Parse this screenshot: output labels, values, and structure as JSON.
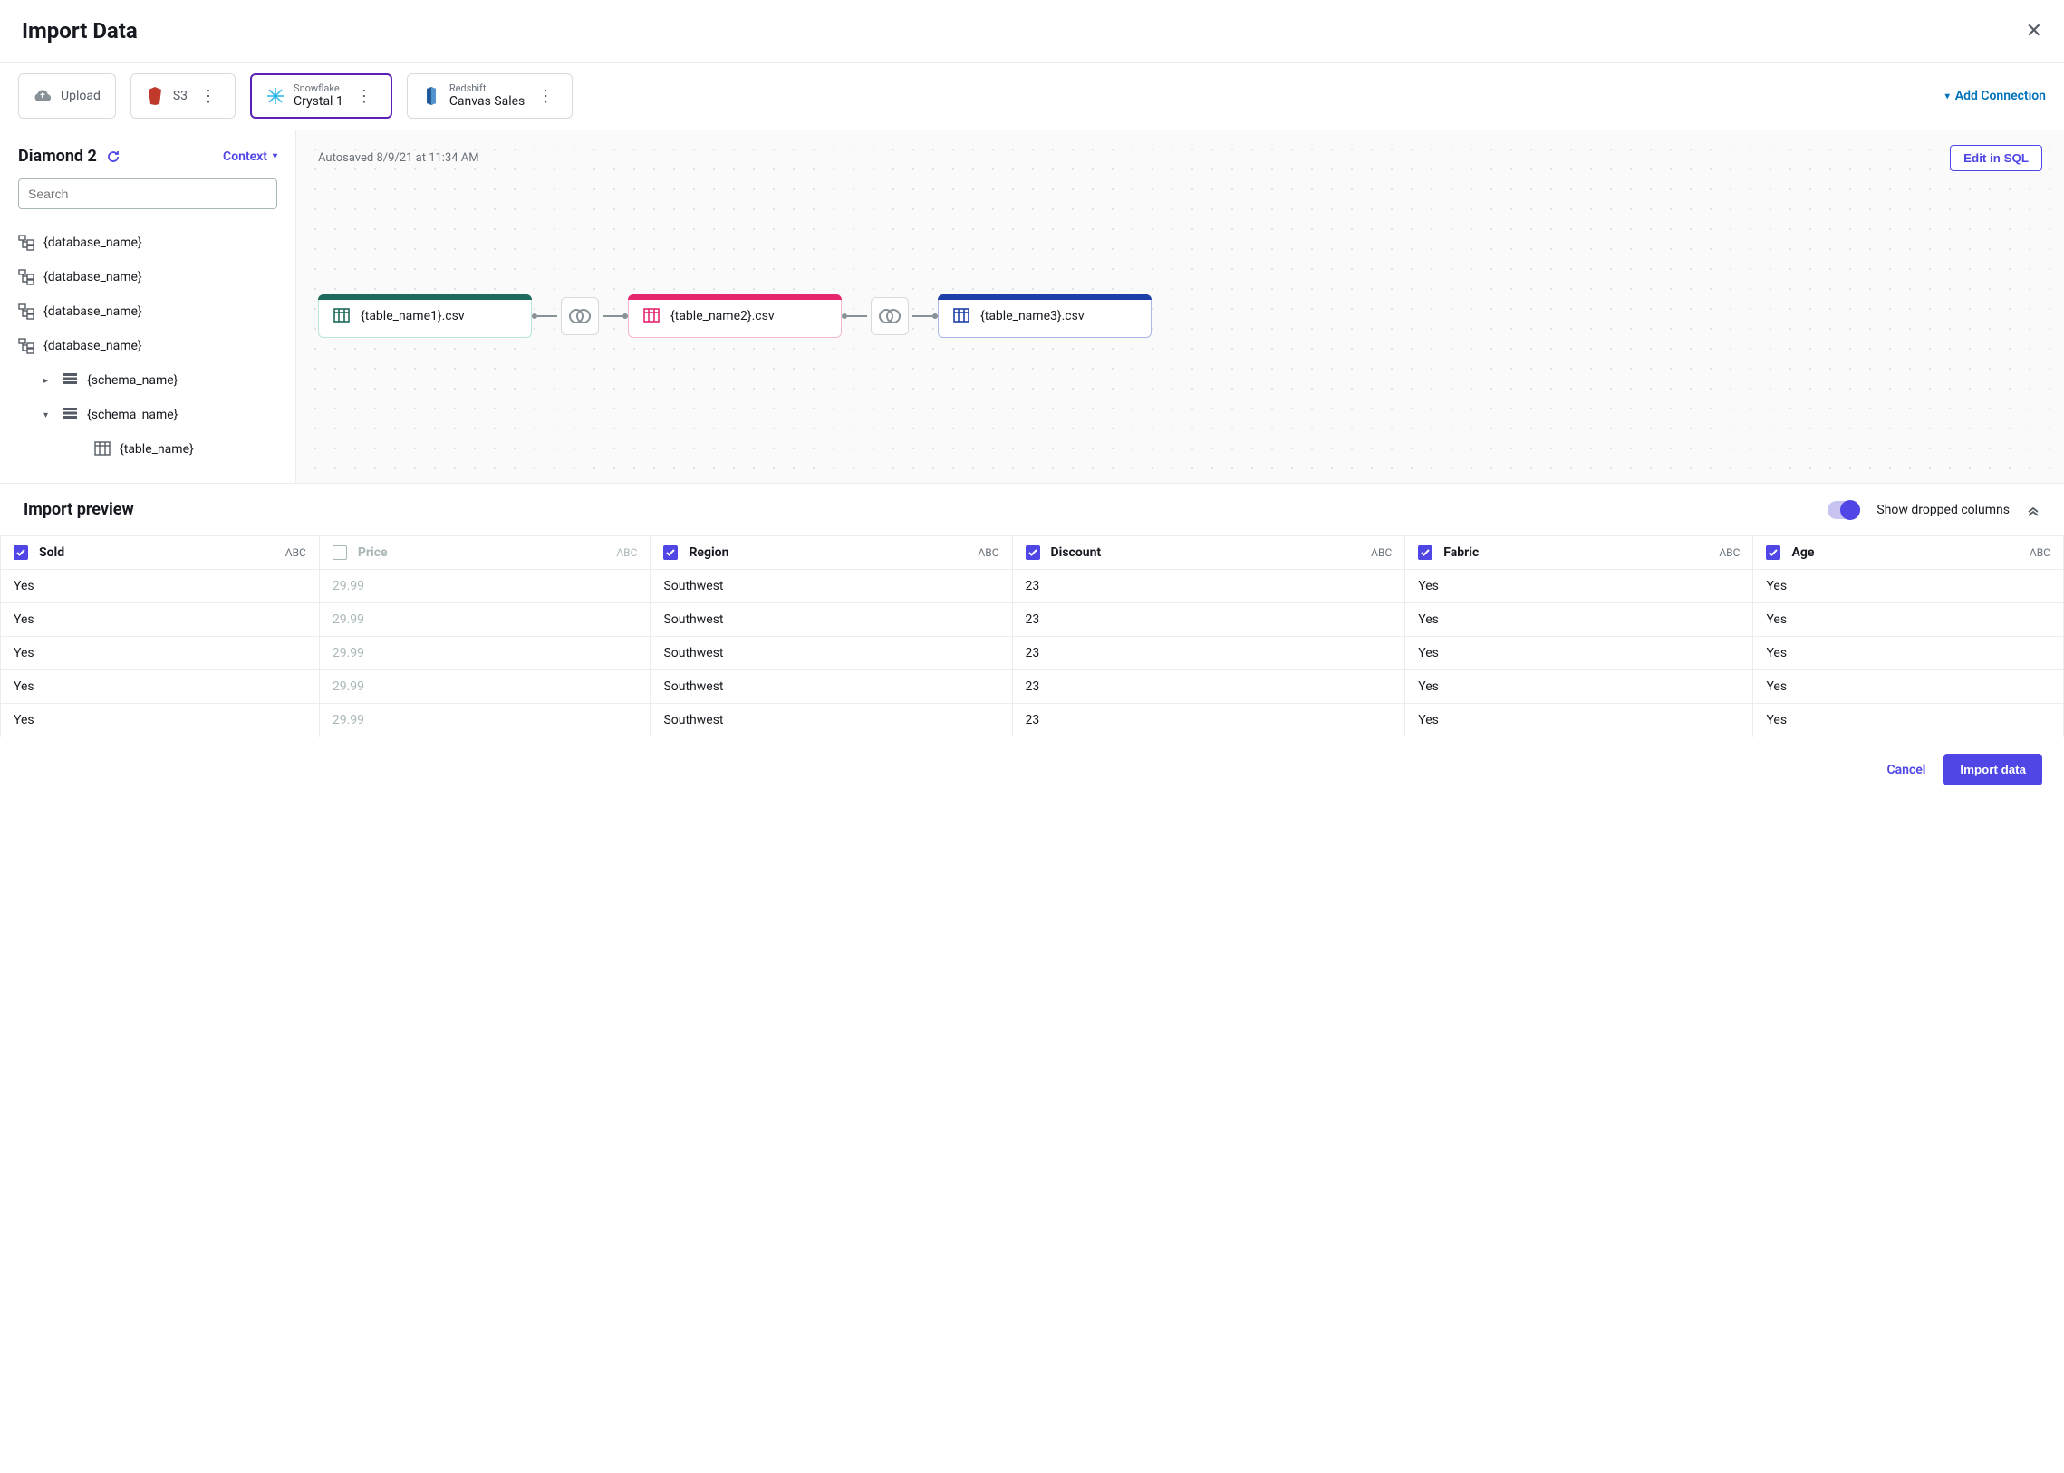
{
  "title": "Import Data",
  "toolbar": {
    "upload_label": "Upload",
    "s3_label": "S3",
    "snowflake": {
      "type": "Snowflake",
      "name": "Crystal 1"
    },
    "redshift": {
      "type": "Redshift",
      "name": "Canvas Sales"
    },
    "add_connection": "Add Connection"
  },
  "sidebar": {
    "dataset_name": "Diamond 2",
    "context_label": "Context",
    "search_placeholder": "Search",
    "databases": [
      "{database_name}",
      "{database_name}",
      "{database_name}",
      "{database_name}"
    ],
    "schemas": [
      "{schema_name}",
      "{schema_name}"
    ],
    "table": "{table_name}"
  },
  "canvas": {
    "autosaved": "Autosaved 8/9/21 at 11:34 AM",
    "edit_sql": "Edit in SQL",
    "nodes": [
      {
        "label": "{table_name1}.csv",
        "accent": "#1d6b5a",
        "border": "#b5e7d8",
        "icon": "#1d6b5a"
      },
      {
        "label": "{table_name2}.csv",
        "accent": "#e6266f",
        "border": "#f5b8cf",
        "icon": "#e6266f"
      },
      {
        "label": "{table_name3}.csv",
        "accent": "#1f3fa8",
        "border": "#a9b8e6",
        "icon": "#1f3fa8"
      }
    ]
  },
  "preview": {
    "title": "Import preview",
    "toggle_label": "Show dropped columns",
    "toggle_on": true,
    "columns": [
      {
        "name": "Sold",
        "type": "ABC",
        "checked": true
      },
      {
        "name": "Price",
        "type": "ABC",
        "checked": false
      },
      {
        "name": "Region",
        "type": "ABC",
        "checked": true
      },
      {
        "name": "Discount",
        "type": "ABC",
        "checked": true
      },
      {
        "name": "Fabric",
        "type": "ABC",
        "checked": true
      },
      {
        "name": "Age",
        "type": "ABC",
        "checked": true
      }
    ],
    "rows": [
      [
        "Yes",
        "29.99",
        "Southwest",
        "23",
        "Yes",
        "Yes"
      ],
      [
        "Yes",
        "29.99",
        "Southwest",
        "23",
        "Yes",
        "Yes"
      ],
      [
        "Yes",
        "29.99",
        "Southwest",
        "23",
        "Yes",
        "Yes"
      ],
      [
        "Yes",
        "29.99",
        "Southwest",
        "23",
        "Yes",
        "Yes"
      ],
      [
        "Yes",
        "29.99",
        "Southwest",
        "23",
        "Yes",
        "Yes"
      ]
    ]
  },
  "footer": {
    "cancel": "Cancel",
    "import": "Import data"
  },
  "colors": {
    "primary": "#4f46e5",
    "link": "#0073bb",
    "border": "#eaeded",
    "muted": "#687078"
  }
}
